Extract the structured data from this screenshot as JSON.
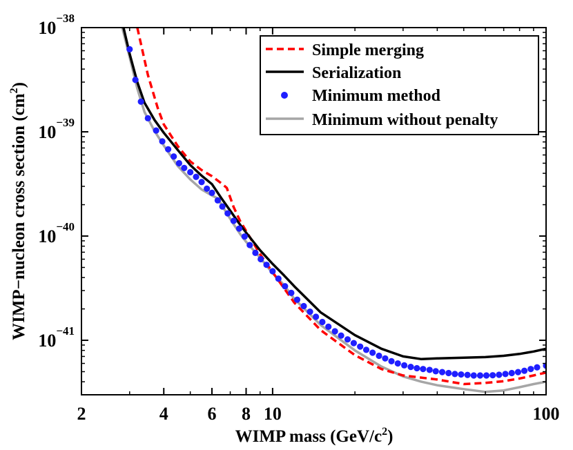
{
  "chart_data": {
    "type": "line",
    "title": "",
    "xlabel": "WIMP mass (GeV/c",
    "xlabel_sup": "2",
    "xlabel_tail": ")",
    "ylabel": "WIMP−nucleon cross section (cm",
    "ylabel_sup": "2",
    "ylabel_tail": ")",
    "xscale": "log",
    "yscale": "log",
    "xlim": [
      2,
      100
    ],
    "ylim": [
      3e-42,
      1e-38
    ],
    "grid": false,
    "legend_position": "top-right",
    "x_ticks": [
      {
        "value": 2,
        "label": "2"
      },
      {
        "value": 4,
        "label": "4"
      },
      {
        "value": 6,
        "label": "6"
      },
      {
        "value": 8,
        "label": "8"
      },
      {
        "value": 10,
        "label": "10"
      },
      {
        "value": 100,
        "label": "100"
      }
    ],
    "y_ticks": [
      {
        "value": 1e-41,
        "base": "10",
        "exp": "−41"
      },
      {
        "value": 1e-40,
        "base": "10",
        "exp": "−40"
      },
      {
        "value": 1e-39,
        "base": "10",
        "exp": "−39"
      },
      {
        "value": 1e-38,
        "base": "10",
        "exp": "−38"
      }
    ],
    "series": [
      {
        "name": "Simple merging",
        "color": "#ff0000",
        "style": "dashed",
        "points": [
          [
            3.2,
            1e-38
          ],
          [
            3.5,
            3.5e-39
          ],
          [
            3.8,
            1.7e-39
          ],
          [
            4.0,
            1.18e-39
          ],
          [
            4.5,
            7.3e-40
          ],
          [
            5.0,
            5.2e-40
          ],
          [
            5.5,
            4.3e-40
          ],
          [
            6.0,
            3.75e-40
          ],
          [
            6.5,
            3.2e-40
          ],
          [
            6.8,
            2.9e-40
          ],
          [
            7.2,
            1.9e-40
          ],
          [
            7.6,
            1.4e-40
          ],
          [
            8.0,
            1.12e-40
          ],
          [
            9.0,
            6.7e-41
          ],
          [
            10.0,
            4.5e-41
          ],
          [
            12.0,
            2.3e-41
          ],
          [
            15.0,
            1.25e-41
          ],
          [
            20.0,
            7.2e-42
          ],
          [
            25.0,
            5.3e-42
          ],
          [
            30.0,
            4.6e-42
          ],
          [
            40.0,
            4.2e-42
          ],
          [
            50.0,
            3.8e-42
          ],
          [
            60.0,
            3.9e-42
          ],
          [
            70.0,
            4.05e-42
          ],
          [
            80.0,
            4.3e-42
          ],
          [
            90.0,
            4.6e-42
          ],
          [
            100.0,
            4.9e-42
          ]
        ]
      },
      {
        "name": "Serialization",
        "color": "#000000",
        "style": "solid",
        "points": [
          [
            2.85,
            1e-38
          ],
          [
            3.0,
            5.6e-39
          ],
          [
            3.2,
            3e-39
          ],
          [
            3.4,
            1.9e-39
          ],
          [
            3.7,
            1.3e-39
          ],
          [
            4.0,
            9.8e-40
          ],
          [
            4.5,
            6.7e-40
          ],
          [
            5.0,
            4.8e-40
          ],
          [
            5.5,
            3.8e-40
          ],
          [
            6.0,
            3.15e-40
          ],
          [
            6.5,
            2.3e-40
          ],
          [
            7.0,
            1.75e-40
          ],
          [
            7.5,
            1.35e-40
          ],
          [
            8.0,
            1.08e-40
          ],
          [
            9.0,
            7.3e-41
          ],
          [
            10.0,
            5.4e-41
          ],
          [
            11.0,
            4.2e-41
          ],
          [
            12.0,
            3.3e-41
          ],
          [
            15.0,
            1.85e-41
          ],
          [
            20.0,
            1.12e-41
          ],
          [
            25.0,
            8.3e-42
          ],
          [
            30.0,
            7e-42
          ],
          [
            35.0,
            6.6e-42
          ],
          [
            40.0,
            6.7e-42
          ],
          [
            50.0,
            6.8e-42
          ],
          [
            60.0,
            6.9e-42
          ],
          [
            70.0,
            7.1e-42
          ],
          [
            80.0,
            7.4e-42
          ],
          [
            90.0,
            7.8e-42
          ],
          [
            100.0,
            8.3e-42
          ]
        ]
      },
      {
        "name": "Minimum method",
        "color": "#1f1fff",
        "style": "dots",
        "points": [
          [
            3.0,
            6.2e-39
          ],
          [
            3.15,
            3.15e-39
          ],
          [
            3.3,
            1.95e-39
          ],
          [
            3.5,
            1.35e-39
          ],
          [
            3.75,
            1.03e-39
          ],
          [
            3.95,
            8.1e-40
          ],
          [
            4.15,
            6.8e-40
          ],
          [
            4.35,
            5.8e-40
          ],
          [
            4.55,
            5e-40
          ],
          [
            4.75,
            4.5e-40
          ],
          [
            5.0,
            4.1e-40
          ],
          [
            5.25,
            3.7e-40
          ],
          [
            5.5,
            3.3e-40
          ],
          [
            5.75,
            2.85e-40
          ],
          [
            6.0,
            2.6e-40
          ],
          [
            6.3,
            2.2e-40
          ],
          [
            6.55,
            1.92e-40
          ],
          [
            6.85,
            1.65e-40
          ],
          [
            7.2,
            1.4e-40
          ],
          [
            7.55,
            1.18e-40
          ],
          [
            7.9,
            9.9e-41
          ],
          [
            8.25,
            8.2e-41
          ],
          [
            8.65,
            6.9e-41
          ],
          [
            9.05,
            6e-41
          ],
          [
            9.5,
            5.3e-41
          ],
          [
            10.0,
            4.6e-41
          ],
          [
            10.5,
            3.9e-41
          ],
          [
            11.1,
            3.3e-41
          ],
          [
            11.7,
            2.85e-41
          ],
          [
            12.3,
            2.45e-41
          ],
          [
            13.0,
            2.13e-41
          ],
          [
            13.7,
            1.88e-41
          ],
          [
            14.4,
            1.68e-41
          ],
          [
            15.2,
            1.5e-41
          ],
          [
            16.0,
            1.35e-41
          ],
          [
            16.9,
            1.22e-41
          ],
          [
            17.8,
            1.11e-41
          ],
          [
            18.8,
            1.02e-41
          ],
          [
            19.8,
            9.4e-42
          ],
          [
            20.9,
            8.7e-42
          ],
          [
            22.0,
            8.1e-42
          ],
          [
            23.2,
            7.6e-42
          ],
          [
            24.5,
            7.1e-42
          ],
          [
            25.8,
            6.7e-42
          ],
          [
            27.2,
            6.3e-42
          ],
          [
            28.7,
            6e-42
          ],
          [
            30.3,
            5.75e-42
          ],
          [
            32.0,
            5.55e-42
          ],
          [
            33.7,
            5.4e-42
          ],
          [
            35.5,
            5.3e-42
          ],
          [
            37.5,
            5.2e-42
          ],
          [
            39.5,
            5.05e-42
          ],
          [
            41.7,
            4.95e-42
          ],
          [
            44.0,
            4.85e-42
          ],
          [
            46.4,
            4.75e-42
          ],
          [
            48.9,
            4.7e-42
          ],
          [
            51.6,
            4.65e-42
          ],
          [
            54.4,
            4.6e-42
          ],
          [
            57.4,
            4.6e-42
          ],
          [
            60.5,
            4.6e-42
          ],
          [
            63.8,
            4.62e-42
          ],
          [
            67.3,
            4.67e-42
          ],
          [
            71.0,
            4.75e-42
          ],
          [
            74.9,
            4.85e-42
          ],
          [
            79.0,
            4.95e-42
          ],
          [
            83.3,
            5.1e-42
          ],
          [
            87.9,
            5.3e-42
          ],
          [
            92.7,
            5.5e-42
          ],
          [
            100.0,
            5.7e-42
          ]
        ]
      },
      {
        "name": "Minimum without penalty",
        "color": "#a6a6a6",
        "style": "solid",
        "points": [
          [
            2.82,
            1e-38
          ],
          [
            3.0,
            5.2e-39
          ],
          [
            3.2,
            2.6e-39
          ],
          [
            3.4,
            1.55e-39
          ],
          [
            3.7,
            1.02e-39
          ],
          [
            4.0,
            7.4e-40
          ],
          [
            4.5,
            4.7e-40
          ],
          [
            5.0,
            3.5e-40
          ],
          [
            5.5,
            2.8e-40
          ],
          [
            6.0,
            2.45e-40
          ],
          [
            6.3,
            2.3e-40
          ],
          [
            6.8,
            1.65e-40
          ],
          [
            7.2,
            1.3e-40
          ],
          [
            7.6,
            1.05e-40
          ],
          [
            8.0,
            8.8e-41
          ],
          [
            9.0,
            6.2e-41
          ],
          [
            10.0,
            4.4e-41
          ],
          [
            11.0,
            3.4e-41
          ],
          [
            12.0,
            2.5e-41
          ],
          [
            15.0,
            1.4e-41
          ],
          [
            20.0,
            8e-42
          ],
          [
            25.0,
            5.6e-42
          ],
          [
            30.0,
            4.5e-42
          ],
          [
            35.0,
            4e-42
          ],
          [
            40.0,
            3.7e-42
          ],
          [
            50.0,
            3.4e-42
          ],
          [
            60.0,
            3.2e-42
          ],
          [
            70.0,
            3.3e-42
          ],
          [
            80.0,
            3.55e-42
          ],
          [
            90.0,
            3.8e-42
          ],
          [
            100.0,
            4e-42
          ]
        ]
      }
    ]
  }
}
